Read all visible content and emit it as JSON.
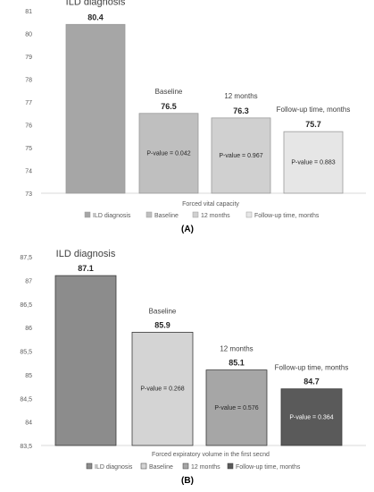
{
  "chart_data": [
    {
      "type": "bar",
      "panel_label": "(A)",
      "xlabel": "Forced vital capacity",
      "ylim": [
        73,
        81
      ],
      "yticks": [
        "73",
        "74",
        "75",
        "76",
        "77",
        "78",
        "79",
        "80",
        "81"
      ],
      "grid": false,
      "legend_position": "bottom",
      "categories": [
        "ILD diagnosis",
        "Baseline",
        "12 months",
        "Follow-up time, months"
      ],
      "values": [
        80.4,
        76.5,
        76.3,
        75.7
      ],
      "value_labels": [
        "80.4",
        "76.5",
        "76.3",
        "75.7"
      ],
      "p_values": [
        "",
        "P-value = 0.042",
        "P-value = 0.967",
        "P-value = 0.883"
      ],
      "legend": [
        "ILD diagnosis",
        "Baseline",
        "12 months",
        "Follow-up time, months"
      ],
      "colors": [
        "#a6a6a6",
        "#bfbfbf",
        "#d0d0d0",
        "#e6e6e6"
      ],
      "outline": "#9a9a9a"
    },
    {
      "type": "bar",
      "panel_label": "(B)",
      "xlabel": "Forced expiratory volume in the first secnd",
      "ylim": [
        83.5,
        87.5
      ],
      "yticks": [
        "83,5",
        "84",
        "84,5",
        "85",
        "85,5",
        "86",
        "86,5",
        "87",
        "87,5"
      ],
      "grid": false,
      "legend_position": "bottom",
      "categories": [
        "ILD diagnosis",
        "Baseline",
        "12 months",
        "Follow-up time, months"
      ],
      "values": [
        87.1,
        85.9,
        85.1,
        84.7
      ],
      "value_labels": [
        "87.1",
        "85.9",
        "85.1",
        "84.7"
      ],
      "p_values": [
        "",
        "P-value = 0.268",
        "P-value = 0.576",
        "P-value = 0.364"
      ],
      "legend": [
        "ILD diagnosis",
        "Baseline",
        "12 months",
        "Follow-up time, months"
      ],
      "colors": [
        "#8c8c8c",
        "#d4d4d4",
        "#a6a6a6",
        "#5a5a5a"
      ],
      "outline": "#3a3a3a"
    }
  ]
}
